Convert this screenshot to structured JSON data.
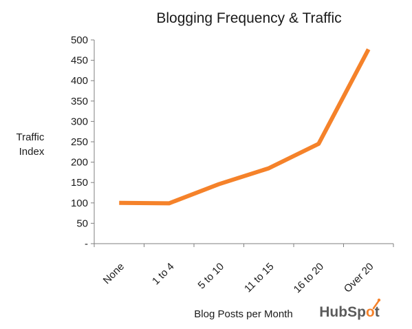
{
  "chart_data": {
    "type": "line",
    "title": "Blogging Frequency & Traffic",
    "xlabel": "Blog Posts per Month",
    "ylabel": "Traffic Index",
    "ylabel_lines": [
      "Traffic",
      "Index"
    ],
    "categories": [
      "None",
      "1 to 4",
      "5 to 10",
      "11 to 15",
      "16 to 20",
      "Over 20"
    ],
    "values": [
      100,
      99,
      146,
      185,
      245,
      477
    ],
    "ylim": [
      0,
      500
    ],
    "yticks": [
      0,
      50,
      100,
      150,
      200,
      250,
      300,
      350,
      400,
      450,
      500
    ],
    "ytick_labels": [
      "-",
      "50",
      "100",
      "150",
      "200",
      "250",
      "300",
      "350",
      "400",
      "450",
      "500"
    ],
    "grid": false,
    "legend": "none",
    "line_color": "#F5822A",
    "axis_color": "#7f7f7f"
  },
  "brand": {
    "logo_text_a": "HubSp",
    "logo_text_b": "t",
    "logo_color": "#5b5b5b",
    "accent_color": "#F5822A"
  }
}
